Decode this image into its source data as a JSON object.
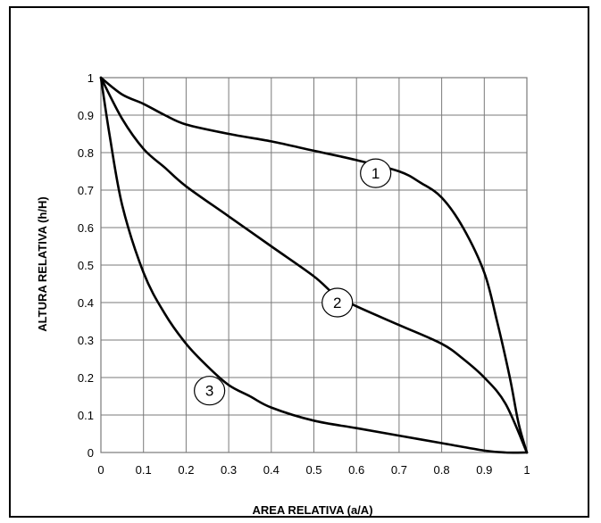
{
  "chart_data": {
    "type": "line",
    "title": "",
    "xlabel": "AREA RELATIVA (a/A)",
    "ylabel": "ALTURA RELATIVA (h/H)",
    "xlim": [
      0,
      1
    ],
    "ylim": [
      0,
      1
    ],
    "x_ticks": [
      "0",
      "0.1",
      "0.2",
      "0.3",
      "0.4",
      "0.5",
      "0.6",
      "0.7",
      "0.8",
      "0.9",
      "1"
    ],
    "y_ticks": [
      "0",
      "0.1",
      "0.2",
      "0.3",
      "0.4",
      "0.5",
      "0.6",
      "0.7",
      "0.8",
      "0.9",
      "1"
    ],
    "grid": true,
    "series": [
      {
        "label": "1",
        "label_at": [
          0.645,
          0.745
        ],
        "points": [
          [
            0,
            1
          ],
          [
            0.05,
            0.955
          ],
          [
            0.1,
            0.93
          ],
          [
            0.15,
            0.9
          ],
          [
            0.2,
            0.875
          ],
          [
            0.3,
            0.85
          ],
          [
            0.4,
            0.83
          ],
          [
            0.5,
            0.805
          ],
          [
            0.6,
            0.78
          ],
          [
            0.7,
            0.75
          ],
          [
            0.75,
            0.72
          ],
          [
            0.8,
            0.68
          ],
          [
            0.85,
            0.6
          ],
          [
            0.9,
            0.48
          ],
          [
            0.93,
            0.35
          ],
          [
            0.96,
            0.2
          ],
          [
            0.98,
            0.08
          ],
          [
            1,
            0
          ]
        ]
      },
      {
        "label": "2",
        "label_at": [
          0.555,
          0.4
        ],
        "points": [
          [
            0,
            1
          ],
          [
            0.05,
            0.89
          ],
          [
            0.1,
            0.81
          ],
          [
            0.15,
            0.76
          ],
          [
            0.2,
            0.71
          ],
          [
            0.3,
            0.63
          ],
          [
            0.4,
            0.55
          ],
          [
            0.5,
            0.47
          ],
          [
            0.55,
            0.42
          ],
          [
            0.6,
            0.39
          ],
          [
            0.7,
            0.34
          ],
          [
            0.8,
            0.29
          ],
          [
            0.85,
            0.25
          ],
          [
            0.9,
            0.2
          ],
          [
            0.95,
            0.13
          ],
          [
            1,
            0
          ]
        ]
      },
      {
        "label": "3",
        "label_at": [
          0.255,
          0.165
        ],
        "points": [
          [
            0,
            1
          ],
          [
            0.02,
            0.85
          ],
          [
            0.05,
            0.66
          ],
          [
            0.1,
            0.48
          ],
          [
            0.15,
            0.37
          ],
          [
            0.2,
            0.29
          ],
          [
            0.25,
            0.23
          ],
          [
            0.3,
            0.18
          ],
          [
            0.35,
            0.15
          ],
          [
            0.4,
            0.12
          ],
          [
            0.5,
            0.085
          ],
          [
            0.6,
            0.065
          ],
          [
            0.7,
            0.045
          ],
          [
            0.8,
            0.025
          ],
          [
            0.9,
            0.005
          ],
          [
            0.95,
            0
          ],
          [
            1,
            0
          ]
        ]
      }
    ]
  }
}
